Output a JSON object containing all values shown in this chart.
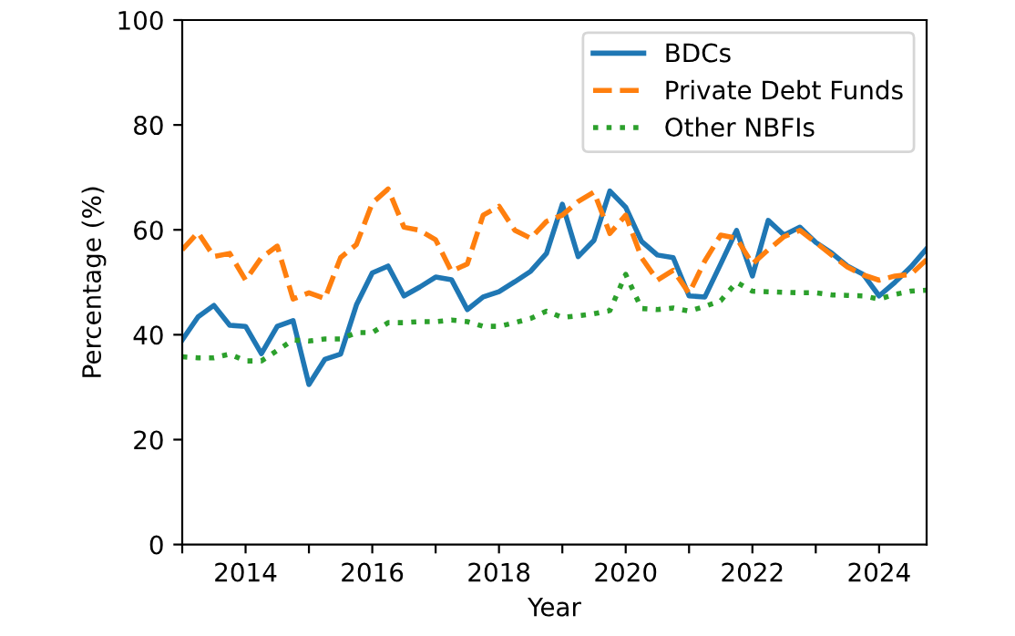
{
  "chart_data": {
    "type": "line",
    "xlabel": "Year",
    "ylabel": "Percentage (%)",
    "x": [
      2013.0,
      2013.25,
      2013.5,
      2013.75,
      2014.0,
      2014.25,
      2014.5,
      2014.75,
      2015.0,
      2015.25,
      2015.5,
      2015.75,
      2016.0,
      2016.25,
      2016.5,
      2016.75,
      2017.0,
      2017.25,
      2017.5,
      2017.75,
      2018.0,
      2018.25,
      2018.5,
      2018.75,
      2019.0,
      2019.25,
      2019.5,
      2019.75,
      2020.0,
      2020.25,
      2020.5,
      2020.75,
      2021.0,
      2021.25,
      2021.5,
      2021.75,
      2022.0,
      2022.25,
      2022.5,
      2022.75,
      2023.0,
      2023.25,
      2023.5,
      2023.75,
      2024.0,
      2024.25,
      2024.5,
      2024.75
    ],
    "series": [
      {
        "name": "BDCs",
        "color": "#1f77b4",
        "line_style": "solid",
        "values": [
          39.0,
          43.4,
          45.6,
          41.8,
          41.6,
          36.4,
          41.6,
          42.7,
          30.5,
          35.3,
          36.3,
          45.7,
          51.8,
          53.1,
          47.4,
          49.1,
          51.0,
          50.5,
          44.8,
          47.2,
          48.2,
          50.1,
          52.1,
          55.5,
          64.9,
          54.9,
          58.0,
          67.4,
          64.3,
          57.8,
          55.2,
          54.7,
          47.4,
          47.2,
          53.5,
          59.9,
          51.2,
          61.8,
          59.0,
          60.5,
          57.6,
          55.6,
          53.1,
          51.5,
          47.4,
          50.0,
          52.9,
          56.4
        ]
      },
      {
        "name": "Private Debt Funds",
        "color": "#ff7f0e",
        "line_style": "dashed",
        "values": [
          56.2,
          59.5,
          54.9,
          55.5,
          50.4,
          54.7,
          56.9,
          46.8,
          48.0,
          46.9,
          54.7,
          57.2,
          65.1,
          67.8,
          60.5,
          59.9,
          58.1,
          52.1,
          53.5,
          62.8,
          64.5,
          59.9,
          58.4,
          61.6,
          62.8,
          65.4,
          67.2,
          59.3,
          62.8,
          54.7,
          50.4,
          52.3,
          47.9,
          54.1,
          59.0,
          58.4,
          53.5,
          56.2,
          58.7,
          59.9,
          57.6,
          55.2,
          52.9,
          51.4,
          50.4,
          51.2,
          51.5,
          54.3
        ]
      },
      {
        "name": "Other NBFIs",
        "color": "#2ca02c",
        "line_style": "dotted",
        "values": [
          35.8,
          35.6,
          35.6,
          36.3,
          35.0,
          35.0,
          37.0,
          39.0,
          38.8,
          39.2,
          39.2,
          40.4,
          40.4,
          42.3,
          42.3,
          42.5,
          42.5,
          42.8,
          42.5,
          41.6,
          41.6,
          42.3,
          43.1,
          44.5,
          43.3,
          43.6,
          44.0,
          44.6,
          51.5,
          45.0,
          44.8,
          45.1,
          44.5,
          45.4,
          46.5,
          50.0,
          48.3,
          48.2,
          48.1,
          48.0,
          48.0,
          47.6,
          47.5,
          47.4,
          46.8,
          47.7,
          48.3,
          48.5
        ]
      }
    ],
    "xlim": [
      2013,
      2024.75
    ],
    "xticks": [
      {
        "value": 2013,
        "label": null
      },
      2014,
      {
        "value": 2015,
        "label": null
      },
      2016,
      {
        "value": 2017,
        "label": null
      },
      2018,
      {
        "value": 2019,
        "label": null
      },
      2020,
      {
        "value": 2021,
        "label": null
      },
      2022,
      {
        "value": 2023,
        "label": null
      },
      2024
    ],
    "ylim": [
      0,
      100
    ],
    "yticks": [
      0,
      20,
      40,
      60,
      80,
      100
    ],
    "legend": "top right",
    "grid": false
  }
}
